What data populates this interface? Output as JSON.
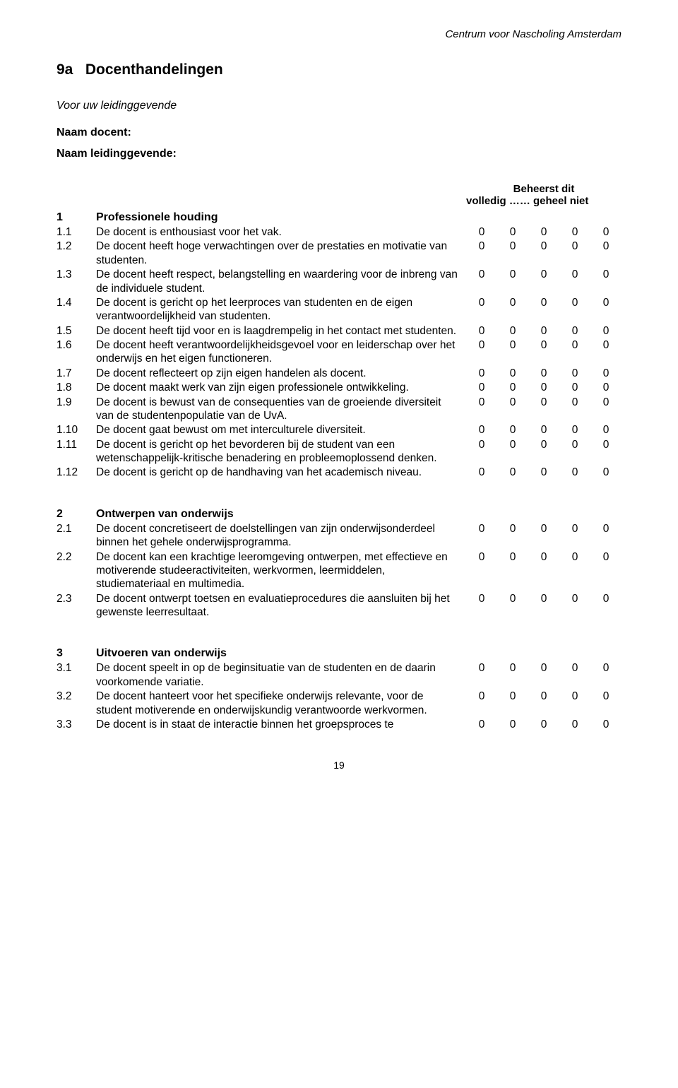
{
  "header": {
    "org": "Centrum voor Nascholing Amsterdam"
  },
  "title_num": "9a",
  "title_text": "Docenthandelingen",
  "subtitle": "Voor uw leidinggevende",
  "label_docent": "Naam docent:",
  "label_leiding": "Naam leidinggevende:",
  "scale": {
    "line1": "Beheerst dit",
    "line2": "volledig …… geheel niet"
  },
  "rating_cells": [
    "0",
    "0",
    "0",
    "0",
    "0"
  ],
  "sections": [
    {
      "num": "1",
      "title": "Professionele houding",
      "items": [
        {
          "num": "1.1",
          "text": "De docent is enthousiast voor het vak."
        },
        {
          "num": "1.2",
          "text": "De docent heeft hoge verwachtingen over de prestaties en motivatie van studenten."
        },
        {
          "num": "1.3",
          "text": "De docent heeft respect, belangstelling en waardering voor de inbreng van de individuele student."
        },
        {
          "num": "1.4",
          "text": "De docent is gericht op het leerproces van studenten en de eigen verantwoordelijkheid van studenten."
        },
        {
          "num": "1.5",
          "text": "De docent heeft tijd voor en is laagdrempelig in het contact met studenten."
        },
        {
          "num": "1.6",
          "text": "De docent heeft verantwoordelijkheidsgevoel voor en leiderschap over het onderwijs en het eigen functioneren."
        },
        {
          "num": "1.7",
          "text": "De docent reflecteert op zijn eigen handelen als docent."
        },
        {
          "num": "1.8",
          "text": "De docent maakt werk van zijn eigen professionele ontwikkeling."
        },
        {
          "num": "1.9",
          "text": "De docent is bewust van de consequenties van de groeiende diversiteit van de studentenpopulatie van de UvA."
        },
        {
          "num": "1.10",
          "text": "De docent gaat bewust om met interculturele diversiteit."
        },
        {
          "num": "1.11",
          "text": "De docent is gericht op het bevorderen bij de student van een wetenschappelijk-kritische benadering en probleemoplossend denken."
        },
        {
          "num": "1.12",
          "text": "De docent is gericht op de handhaving van het academisch niveau."
        }
      ]
    },
    {
      "num": "2",
      "title": "Ontwerpen van onderwijs",
      "items": [
        {
          "num": "2.1",
          "text": "De docent concretiseert de doelstellingen van zijn onderwijsonderdeel binnen het gehele onderwijsprogramma."
        },
        {
          "num": "2.2",
          "text": "De docent kan een krachtige leeromgeving ontwerpen, met effectieve en motiverende studeeractiviteiten, werkvormen, leermiddelen, studiemateriaal en multimedia."
        },
        {
          "num": "2.3",
          "text": "De docent ontwerpt toetsen en evaluatieprocedures die aansluiten bij het gewenste leerresultaat."
        }
      ]
    },
    {
      "num": "3",
      "title": "Uitvoeren van onderwijs",
      "items": [
        {
          "num": "3.1",
          "text": "De docent speelt in op de beginsituatie van de studenten en de daarin voorkomende variatie."
        },
        {
          "num": "3.2",
          "text": "De docent hanteert voor het specifieke onderwijs relevante, voor de student motiverende en onderwijskundig verantwoorde werkvormen."
        },
        {
          "num": "3.3",
          "text": "De docent is in staat de interactie binnen het groepsproces te"
        }
      ]
    }
  ],
  "page_number": "19"
}
